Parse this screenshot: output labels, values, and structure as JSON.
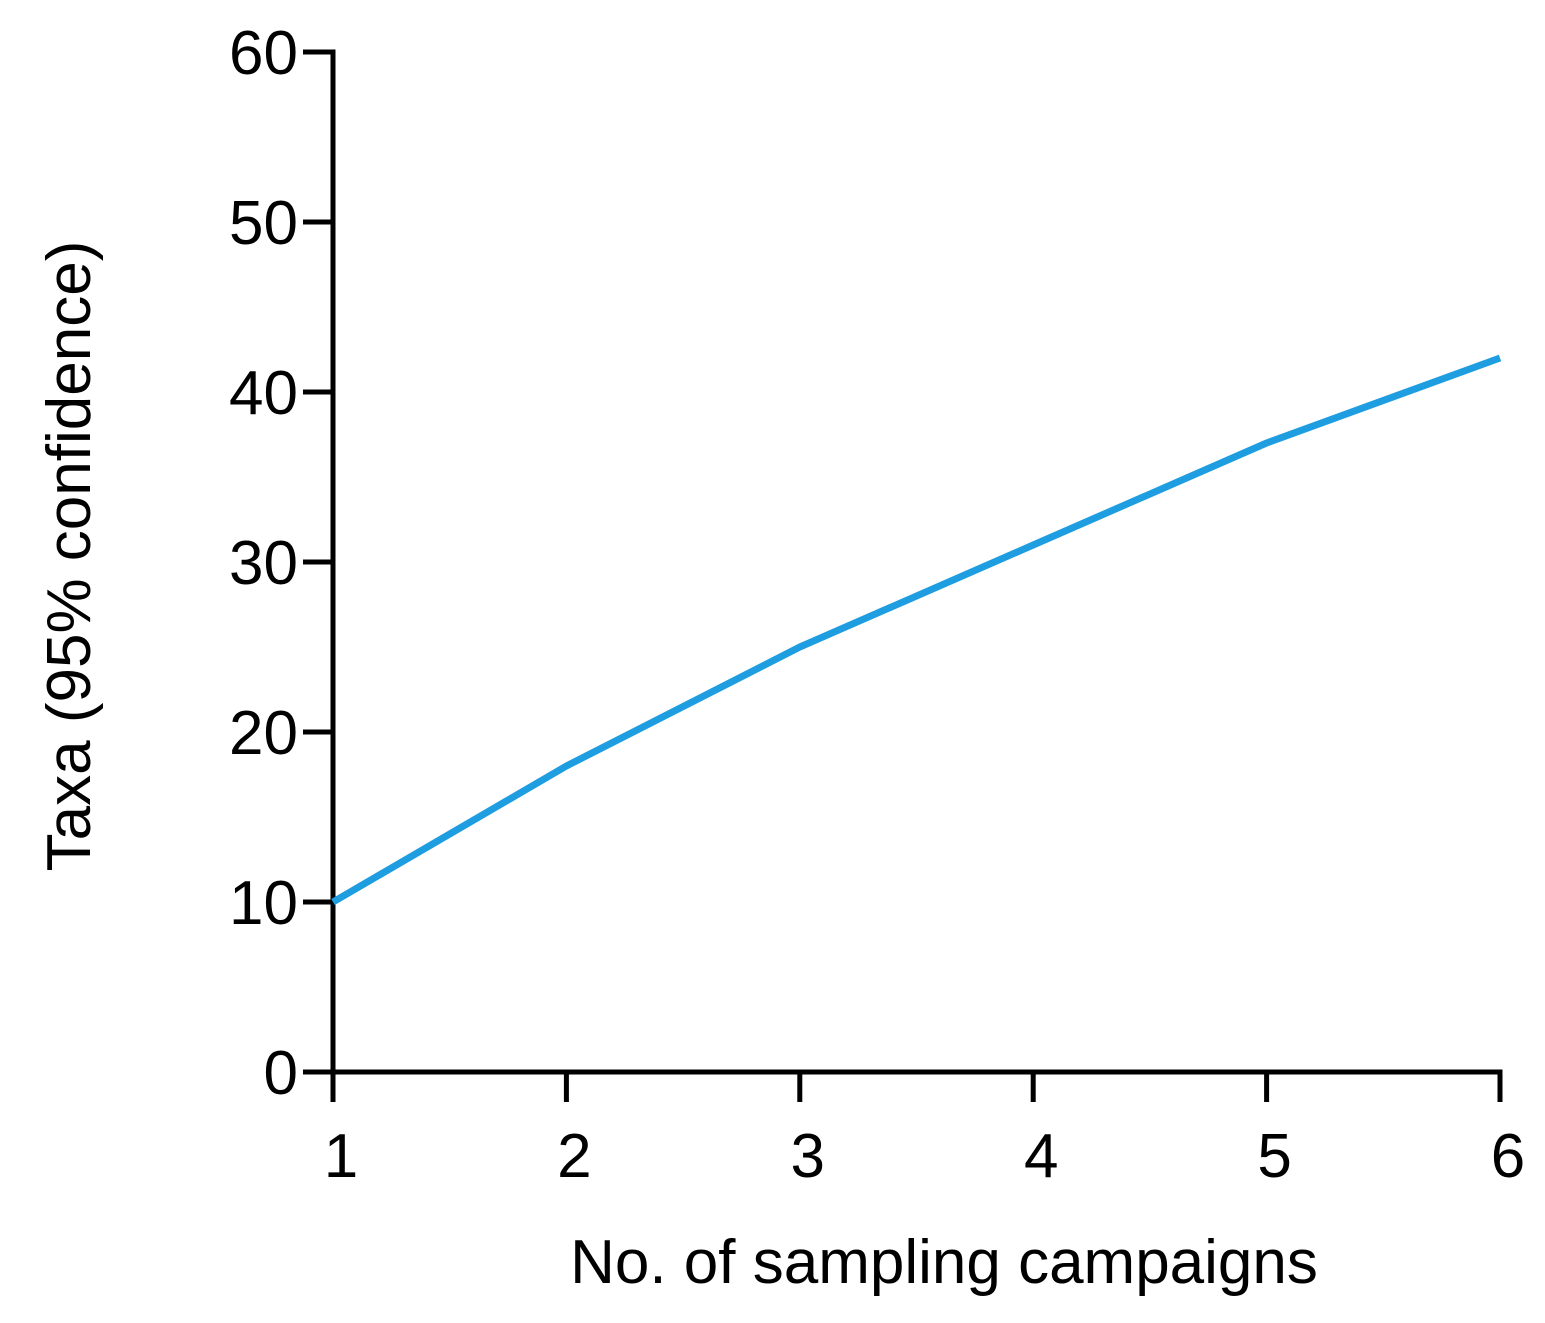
{
  "chart_data": {
    "type": "line",
    "title": "",
    "xlabel": "No. of sampling campaigns",
    "ylabel": "Taxa (95% confidence)",
    "x": [
      1,
      2,
      3,
      4,
      5,
      6
    ],
    "series": [
      {
        "values": [
          10,
          18,
          25,
          31,
          37,
          42
        ],
        "color": "#1e9ee0"
      }
    ],
    "xlim": [
      1,
      6
    ],
    "ylim": [
      0,
      60
    ],
    "xticks": [
      1,
      2,
      3,
      4,
      5,
      6
    ],
    "xtick_labels": [
      "1",
      "2",
      "3",
      "4",
      "5",
      "6"
    ],
    "yticks": [
      0,
      10,
      20,
      30,
      40,
      50,
      60
    ],
    "ytick_labels": [
      "0",
      "10",
      "20",
      "30",
      "40",
      "50",
      "60"
    ],
    "grid": false,
    "legend": "none"
  }
}
